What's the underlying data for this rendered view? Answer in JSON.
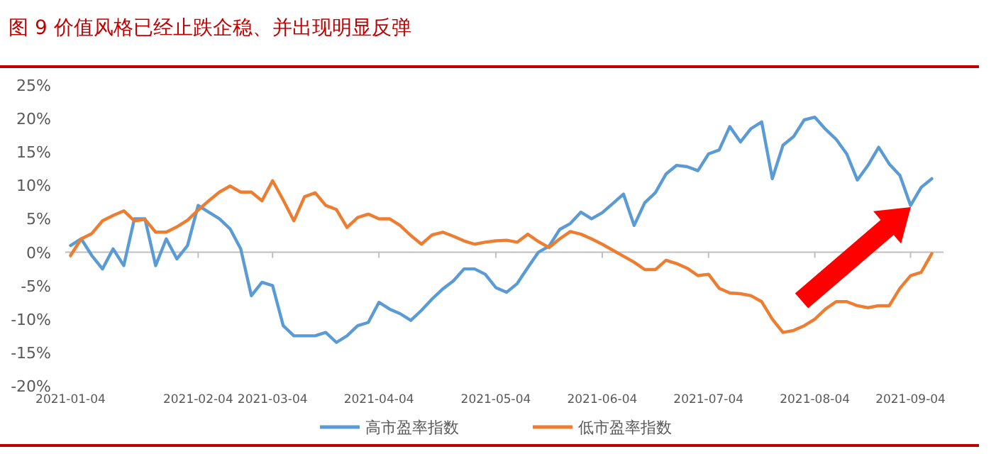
{
  "chart_data": {
    "type": "line",
    "title": "图 9 价值风格已经止跌企稳、并出现明显反弹",
    "categories": [
      "2021-01-04",
      null,
      null,
      null,
      null,
      null,
      null,
      null,
      null,
      null,
      null,
      null,
      "2021-02-04",
      null,
      null,
      null,
      null,
      null,
      null,
      "2021-03-04",
      null,
      null,
      null,
      null,
      null,
      null,
      null,
      null,
      null,
      "2021-04-04",
      null,
      null,
      null,
      null,
      null,
      null,
      null,
      null,
      null,
      null,
      "2021-05-04",
      null,
      null,
      null,
      null,
      null,
      null,
      null,
      null,
      null,
      "2021-06-04",
      null,
      null,
      null,
      null,
      null,
      null,
      null,
      null,
      null,
      "2021-07-04",
      null,
      null,
      null,
      null,
      null,
      null,
      null,
      null,
      null,
      "2021-08-04",
      null,
      null,
      null,
      null,
      null,
      null,
      null,
      null,
      "2021-09-04",
      null,
      null
    ],
    "ylim": [
      -20,
      25
    ],
    "yticks": [
      {
        "value": -20,
        "label": "-20%"
      },
      {
        "value": -15,
        "label": "-15%"
      },
      {
        "value": -10,
        "label": "-10%"
      },
      {
        "value": -5,
        "label": "-5%"
      },
      {
        "value": 0,
        "label": "0%"
      },
      {
        "value": 5,
        "label": "5%"
      },
      {
        "value": 10,
        "label": "10%"
      },
      {
        "value": 15,
        "label": "15%"
      },
      {
        "value": 20,
        "label": "20%"
      },
      {
        "value": 25,
        "label": "25%"
      }
    ],
    "legend": "bottom",
    "series": [
      {
        "name": "高市盈率指数",
        "color": "#5b9bd5",
        "values": [
          1,
          2,
          -0.5,
          -2.5,
          0.5,
          -2,
          5,
          5,
          -2,
          2,
          -1,
          1,
          7,
          6,
          5,
          3.5,
          0.5,
          -6.5,
          -4.5,
          -5,
          -11,
          -12.5,
          -12.5,
          -12.5,
          -12,
          -13.5,
          -12.5,
          -11,
          -10.5,
          -7.5,
          -8.5,
          -9.2,
          -10.2,
          -8.7,
          -7,
          -5.5,
          -4.3,
          -2.5,
          -2.5,
          -3.3,
          -5.3,
          -6,
          -4.7,
          -2.3,
          0,
          0.9,
          3.4,
          4.3,
          6,
          5,
          5.9,
          7.3,
          8.7,
          4,
          7.4,
          8.9,
          11.7,
          13,
          12.8,
          12.2,
          14.7,
          15.3,
          18.8,
          16.5,
          18.5,
          19.5,
          11,
          16,
          17.3,
          19.8,
          20.2,
          18.4,
          16.9,
          14.7,
          10.8,
          13,
          15.7,
          13.2,
          11.5,
          7,
          9.7,
          11
        ]
      },
      {
        "name": "低市盈率指数",
        "color": "#ed7d31",
        "values": [
          -0.5,
          2,
          2.8,
          4.7,
          5.5,
          6.2,
          4.7,
          4.9,
          3,
          3,
          3.8,
          4.8,
          6.3,
          7.7,
          9,
          9.9,
          9,
          9,
          7.7,
          10.7,
          7.8,
          4.7,
          8.3,
          8.9,
          7,
          6.4,
          3.7,
          5.2,
          5.7,
          5,
          5,
          4,
          2.5,
          1.2,
          2.6,
          3,
          2.4,
          1.7,
          1.2,
          1.5,
          1.7,
          1.8,
          1.5,
          2.7,
          1.6,
          0.7,
          2,
          3.1,
          2.7,
          2,
          1.2,
          0.3,
          -0.6,
          -1.5,
          -2.6,
          -2.6,
          -1.2,
          -1.7,
          -2.4,
          -3.5,
          -3.3,
          -5.4,
          -6.1,
          -6.2,
          -6.5,
          -7.4,
          -10,
          -12,
          -11.7,
          -11,
          -10,
          -8.5,
          -7.4,
          -7.4,
          -8,
          -8.3,
          -8,
          -8,
          -5.4,
          -3.5,
          -3,
          -0.2
        ]
      }
    ]
  }
}
